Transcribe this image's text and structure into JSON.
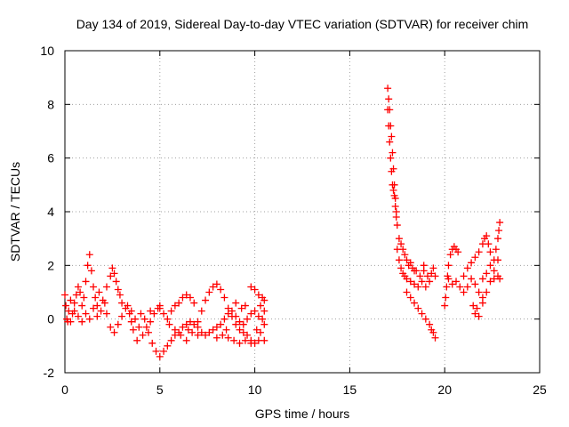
{
  "chart_data": {
    "type": "scatter",
    "title": "Day 134 of 2019, Sidereal Day-to-day VTEC variation (SDTVAR) for receiver chim",
    "xlabel": "GPS time / hours",
    "ylabel": "SDTVAR / TECUs",
    "xlim": [
      0,
      25
    ],
    "ylim": [
      -2,
      10
    ],
    "xticks": [
      "0",
      "5",
      "10",
      "15",
      "20",
      "25"
    ],
    "yticks": [
      "-2",
      "0",
      "2",
      "4",
      "6",
      "8",
      "10"
    ],
    "grid": true,
    "marker": "plus",
    "marker_color": "#ff0000",
    "series": [
      {
        "name": "SDTVAR",
        "points": [
          [
            0.0,
            0.9
          ],
          [
            0.05,
            0.5
          ],
          [
            0.1,
            0.0
          ],
          [
            0.15,
            -0.1
          ],
          [
            0.2,
            0.3
          ],
          [
            0.3,
            0.7
          ],
          [
            0.4,
            0.2
          ],
          [
            0.5,
            0.6
          ],
          [
            0.6,
            0.9
          ],
          [
            0.7,
            1.2
          ],
          [
            0.8,
            1.0
          ],
          [
            0.9,
            0.5
          ],
          [
            1.0,
            0.8
          ],
          [
            1.1,
            1.4
          ],
          [
            1.2,
            2.0
          ],
          [
            1.3,
            2.4
          ],
          [
            1.4,
            1.8
          ],
          [
            1.5,
            1.2
          ],
          [
            1.6,
            0.8
          ],
          [
            1.7,
            0.5
          ],
          [
            0.3,
            -0.1
          ],
          [
            0.5,
            0.3
          ],
          [
            0.7,
            0.1
          ],
          [
            0.9,
            -0.1
          ],
          [
            1.1,
            0.2
          ],
          [
            1.3,
            0.0
          ],
          [
            1.5,
            0.4
          ],
          [
            1.7,
            0.1
          ],
          [
            1.9,
            0.3
          ],
          [
            2.1,
            0.6
          ],
          [
            1.8,
            1.0
          ],
          [
            2.0,
            0.7
          ],
          [
            2.2,
            1.2
          ],
          [
            2.4,
            1.6
          ],
          [
            2.5,
            1.9
          ],
          [
            2.6,
            1.7
          ],
          [
            2.7,
            1.4
          ],
          [
            2.8,
            1.1
          ],
          [
            2.9,
            0.9
          ],
          [
            3.0,
            0.6
          ],
          [
            2.2,
            0.2
          ],
          [
            2.4,
            -0.3
          ],
          [
            2.6,
            -0.5
          ],
          [
            2.8,
            -0.2
          ],
          [
            3.0,
            0.1
          ],
          [
            3.2,
            0.4
          ],
          [
            3.4,
            0.2
          ],
          [
            3.5,
            -0.1
          ],
          [
            3.6,
            -0.4
          ],
          [
            3.8,
            -0.8
          ],
          [
            3.3,
            0.5
          ],
          [
            3.5,
            0.3
          ],
          [
            3.7,
            0.0
          ],
          [
            3.9,
            -0.3
          ],
          [
            4.1,
            -0.6
          ],
          [
            4.3,
            -0.3
          ],
          [
            4.5,
            -0.1
          ],
          [
            4.7,
            0.2
          ],
          [
            4.9,
            0.4
          ],
          [
            5.0,
            0.5
          ],
          [
            4.0,
            0.2
          ],
          [
            4.2,
            0.0
          ],
          [
            4.4,
            -0.5
          ],
          [
            4.6,
            -0.9
          ],
          [
            4.8,
            -1.2
          ],
          [
            5.0,
            -1.4
          ],
          [
            5.2,
            -1.2
          ],
          [
            5.4,
            -1.0
          ],
          [
            5.6,
            -0.8
          ],
          [
            5.8,
            -0.6
          ],
          [
            6.0,
            -0.5
          ],
          [
            6.2,
            -0.3
          ],
          [
            6.4,
            -0.2
          ],
          [
            6.6,
            -0.1
          ],
          [
            6.8,
            -0.2
          ],
          [
            7.0,
            -0.3
          ],
          [
            7.2,
            -0.5
          ],
          [
            7.4,
            -0.6
          ],
          [
            7.6,
            -0.5
          ],
          [
            7.8,
            -0.4
          ],
          [
            5.0,
            0.4
          ],
          [
            5.2,
            0.2
          ],
          [
            5.4,
            0.0
          ],
          [
            5.6,
            0.3
          ],
          [
            5.8,
            0.5
          ],
          [
            6.0,
            0.6
          ],
          [
            6.2,
            0.8
          ],
          [
            6.4,
            0.9
          ],
          [
            6.6,
            0.8
          ],
          [
            6.8,
            0.6
          ],
          [
            5.5,
            -0.2
          ],
          [
            5.8,
            -0.4
          ],
          [
            6.1,
            -0.6
          ],
          [
            6.4,
            -0.8
          ],
          [
            6.7,
            -0.5
          ],
          [
            7.0,
            -0.1
          ],
          [
            7.2,
            0.3
          ],
          [
            7.4,
            0.7
          ],
          [
            7.6,
            1.0
          ],
          [
            7.8,
            1.2
          ],
          [
            8.0,
            1.3
          ],
          [
            8.2,
            1.1
          ],
          [
            8.4,
            0.8
          ],
          [
            8.6,
            0.4
          ],
          [
            8.8,
            0.1
          ],
          [
            9.0,
            -0.2
          ],
          [
            9.2,
            -0.4
          ],
          [
            9.4,
            -0.5
          ],
          [
            9.6,
            -0.6
          ],
          [
            9.8,
            -0.8
          ],
          [
            8.0,
            -0.3
          ],
          [
            8.2,
            -0.2
          ],
          [
            8.4,
            0.0
          ],
          [
            8.6,
            0.2
          ],
          [
            8.8,
            0.3
          ],
          [
            9.0,
            0.1
          ],
          [
            9.2,
            -0.1
          ],
          [
            9.4,
            -0.2
          ],
          [
            9.6,
            0.0
          ],
          [
            9.8,
            0.2
          ],
          [
            8.0,
            -0.7
          ],
          [
            8.3,
            -0.6
          ],
          [
            8.6,
            -0.7
          ],
          [
            8.9,
            -0.8
          ],
          [
            9.2,
            -0.9
          ],
          [
            9.5,
            -0.8
          ],
          [
            9.8,
            -0.9
          ],
          [
            10.0,
            -0.9
          ],
          [
            10.2,
            -0.8
          ],
          [
            10.5,
            -0.8
          ],
          [
            9.8,
            1.2
          ],
          [
            10.0,
            1.1
          ],
          [
            10.2,
            0.9
          ],
          [
            10.4,
            0.8
          ],
          [
            10.5,
            0.7
          ],
          [
            10.0,
            0.3
          ],
          [
            10.2,
            0.1
          ],
          [
            10.4,
            0.0
          ],
          [
            10.5,
            -0.2
          ],
          [
            9.5,
            0.5
          ],
          [
            10.3,
            0.5
          ],
          [
            10.5,
            0.3
          ],
          [
            10.1,
            -0.4
          ],
          [
            10.3,
            -0.5
          ],
          [
            9.0,
            0.6
          ],
          [
            9.3,
            0.4
          ],
          [
            8.5,
            -0.4
          ],
          [
            7.0,
            -0.6
          ],
          [
            6.5,
            -0.4
          ],
          [
            4.5,
            0.3
          ],
          [
            17.0,
            8.6
          ],
          [
            17.05,
            8.2
          ],
          [
            17.1,
            7.8
          ],
          [
            17.15,
            7.2
          ],
          [
            17.2,
            6.8
          ],
          [
            17.25,
            6.2
          ],
          [
            17.3,
            5.6
          ],
          [
            17.35,
            5.0
          ],
          [
            17.4,
            4.5
          ],
          [
            17.45,
            4.0
          ],
          [
            17.0,
            7.8
          ],
          [
            17.05,
            7.2
          ],
          [
            17.1,
            6.6
          ],
          [
            17.15,
            6.0
          ],
          [
            17.2,
            5.5
          ],
          [
            17.25,
            5.0
          ],
          [
            17.3,
            4.8
          ],
          [
            17.35,
            4.6
          ],
          [
            17.4,
            4.2
          ],
          [
            17.45,
            3.8
          ],
          [
            17.5,
            3.5
          ],
          [
            17.6,
            3.0
          ],
          [
            17.7,
            2.8
          ],
          [
            17.8,
            2.6
          ],
          [
            17.9,
            2.4
          ],
          [
            18.0,
            2.2
          ],
          [
            18.1,
            2.0
          ],
          [
            18.2,
            2.1
          ],
          [
            18.3,
            1.9
          ],
          [
            18.4,
            1.8
          ],
          [
            17.5,
            2.6
          ],
          [
            17.6,
            2.2
          ],
          [
            17.7,
            1.9
          ],
          [
            17.8,
            1.7
          ],
          [
            17.9,
            1.6
          ],
          [
            18.0,
            1.5
          ],
          [
            18.2,
            1.4
          ],
          [
            18.4,
            1.3
          ],
          [
            18.6,
            1.2
          ],
          [
            18.8,
            1.4
          ],
          [
            18.0,
            1.0
          ],
          [
            18.2,
            0.8
          ],
          [
            18.4,
            0.6
          ],
          [
            18.6,
            0.4
          ],
          [
            18.8,
            0.2
          ],
          [
            19.0,
            0.0
          ],
          [
            19.2,
            -0.2
          ],
          [
            19.4,
            -0.5
          ],
          [
            19.5,
            -0.7
          ],
          [
            19.3,
            -0.4
          ],
          [
            18.5,
            1.8
          ],
          [
            18.7,
            1.6
          ],
          [
            18.9,
            1.8
          ],
          [
            19.1,
            1.6
          ],
          [
            19.3,
            1.7
          ],
          [
            19.5,
            1.6
          ],
          [
            19.0,
            1.2
          ],
          [
            19.2,
            1.4
          ],
          [
            18.9,
            2.0
          ],
          [
            19.4,
            1.9
          ],
          [
            20.0,
            0.5
          ],
          [
            20.05,
            0.8
          ],
          [
            20.1,
            1.2
          ],
          [
            20.15,
            1.6
          ],
          [
            20.2,
            2.0
          ],
          [
            20.3,
            2.4
          ],
          [
            20.4,
            2.6
          ],
          [
            20.5,
            2.7
          ],
          [
            20.6,
            2.6
          ],
          [
            20.7,
            2.5
          ],
          [
            20.2,
            1.5
          ],
          [
            20.4,
            1.3
          ],
          [
            20.6,
            1.4
          ],
          [
            20.8,
            1.2
          ],
          [
            21.0,
            1.0
          ],
          [
            21.2,
            1.2
          ],
          [
            21.4,
            1.5
          ],
          [
            21.6,
            1.3
          ],
          [
            21.8,
            1.0
          ],
          [
            22.0,
            0.8
          ],
          [
            21.0,
            1.6
          ],
          [
            21.2,
            1.9
          ],
          [
            21.4,
            2.1
          ],
          [
            21.6,
            2.3
          ],
          [
            21.8,
            2.5
          ],
          [
            22.0,
            2.8
          ],
          [
            22.1,
            3.0
          ],
          [
            22.2,
            3.1
          ],
          [
            22.3,
            2.8
          ],
          [
            22.4,
            2.5
          ],
          [
            22.0,
            1.5
          ],
          [
            22.2,
            1.7
          ],
          [
            22.4,
            2.0
          ],
          [
            22.6,
            2.2
          ],
          [
            22.7,
            2.6
          ],
          [
            22.8,
            3.0
          ],
          [
            22.85,
            3.3
          ],
          [
            22.9,
            3.6
          ],
          [
            22.6,
            1.8
          ],
          [
            22.8,
            2.2
          ],
          [
            21.5,
            0.5
          ],
          [
            21.6,
            0.2
          ],
          [
            21.7,
            0.4
          ],
          [
            21.8,
            0.1
          ],
          [
            22.0,
            0.6
          ],
          [
            22.2,
            1.0
          ],
          [
            22.4,
            1.4
          ],
          [
            22.6,
            1.5
          ],
          [
            22.8,
            1.6
          ],
          [
            22.9,
            1.5
          ]
        ]
      }
    ]
  }
}
